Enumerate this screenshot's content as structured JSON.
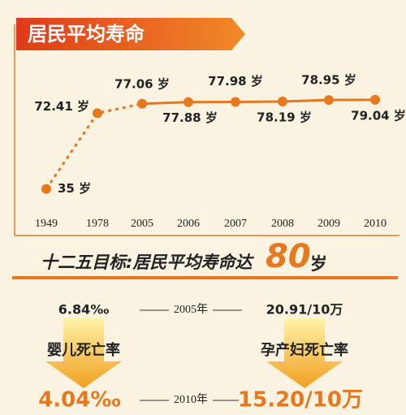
{
  "chart_data": {
    "type": "line",
    "title": "居民平均寿命",
    "categories": [
      "1949",
      "1978",
      "2005",
      "2006",
      "2007",
      "2008",
      "2009",
      "2010"
    ],
    "values": [
      35,
      72.41,
      77.06,
      77.88,
      77.98,
      78.19,
      78.95,
      79.04
    ],
    "value_labels": [
      "35 岁",
      "72.41 岁",
      "77.06 岁",
      "77.88 岁",
      "77.98 岁",
      "78.19 岁",
      "78.95 岁",
      "79.04 岁"
    ],
    "color": "#e8781e",
    "ylim": [
      20,
      85
    ]
  },
  "target": {
    "prefix": "十二五目标:居民平均寿命达",
    "value": "80",
    "unit": "岁"
  },
  "indicators": {
    "year_before": "2005年",
    "year_after": "2010年",
    "items": [
      {
        "name": "婴儿死亡率",
        "before": "6.84‰",
        "after": "4.04‰"
      },
      {
        "name": "孕产妇死亡率",
        "before": "20.91/10万",
        "after": "15.20/10万"
      }
    ]
  }
}
